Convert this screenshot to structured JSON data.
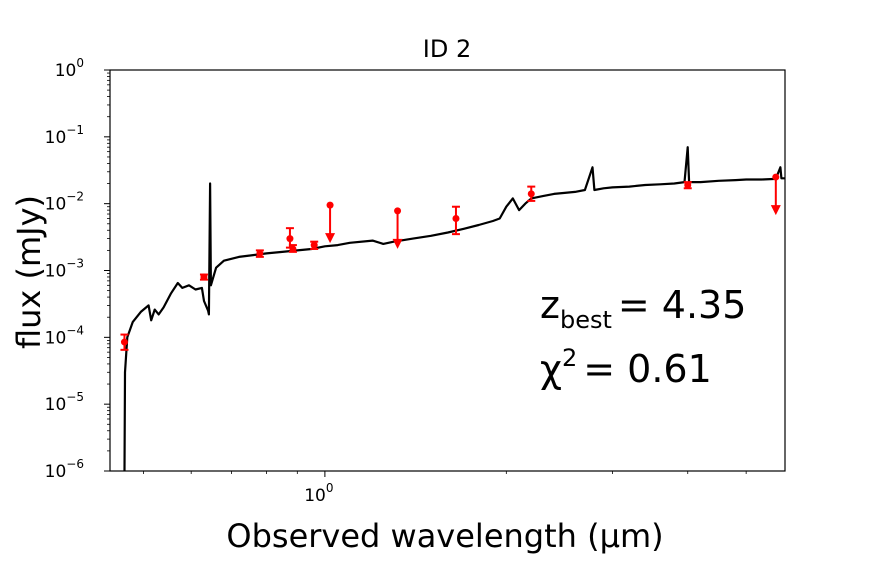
{
  "chart_data": {
    "type": "line",
    "title": "ID 2",
    "xlabel": "Observed wavelength (µm)",
    "ylabel": "flux (mJy)",
    "xscale": "log",
    "yscale": "log",
    "xlim": [
      0.44,
      5.8
    ],
    "ylim": [
      1e-06,
      1
    ],
    "grid": false,
    "x_ticks": [
      {
        "value": 1,
        "base": "10",
        "exp": "0"
      }
    ],
    "y_ticks": [
      {
        "value": 1,
        "base": "10",
        "exp": "0"
      },
      {
        "value": 0.1,
        "base": "10",
        "exp": "−1"
      },
      {
        "value": 0.01,
        "base": "10",
        "exp": "−2"
      },
      {
        "value": 0.001,
        "base": "10",
        "exp": "−3"
      },
      {
        "value": 0.0001,
        "base": "10",
        "exp": "−4"
      },
      {
        "value": 1e-05,
        "base": "10",
        "exp": "−5"
      },
      {
        "value": 1e-06,
        "base": "10",
        "exp": "−6"
      }
    ],
    "annotations": {
      "z_label": "z",
      "z_sub": "best",
      "z_value": "= 4.35",
      "chi_label": "χ",
      "chi_sup": "2",
      "chi_value": "= 0.61"
    },
    "series": [
      {
        "kind": "model_sed",
        "color": "#000000",
        "points": [
          [
            0.465,
            1e-06
          ],
          [
            0.466,
            3e-05
          ],
          [
            0.47,
            0.0001
          ],
          [
            0.48,
            0.00017
          ],
          [
            0.495,
            0.00024
          ],
          [
            0.51,
            0.0003
          ],
          [
            0.515,
            0.00018
          ],
          [
            0.522,
            0.00026
          ],
          [
            0.53,
            0.00022
          ],
          [
            0.54,
            0.00028
          ],
          [
            0.555,
            0.00045
          ],
          [
            0.57,
            0.00065
          ],
          [
            0.58,
            0.00055
          ],
          [
            0.595,
            0.0006
          ],
          [
            0.61,
            0.00052
          ],
          [
            0.625,
            0.00055
          ],
          [
            0.63,
            0.00035
          ],
          [
            0.64,
            0.00025
          ],
          [
            0.642,
            0.00022
          ],
          [
            0.645,
            0.02
          ],
          [
            0.647,
            0.0006
          ],
          [
            0.66,
            0.0011
          ],
          [
            0.68,
            0.0014
          ],
          [
            0.72,
            0.0016
          ],
          [
            0.76,
            0.0017
          ],
          [
            0.8,
            0.0018
          ],
          [
            0.85,
            0.0019
          ],
          [
            0.9,
            0.002
          ],
          [
            0.95,
            0.0021
          ],
          [
            1.0,
            0.0023
          ],
          [
            1.05,
            0.0024
          ],
          [
            1.1,
            0.0026
          ],
          [
            1.2,
            0.0028
          ],
          [
            1.25,
            0.0025
          ],
          [
            1.3,
            0.0027
          ],
          [
            1.4,
            0.003
          ],
          [
            1.5,
            0.0033
          ],
          [
            1.6,
            0.0037
          ],
          [
            1.7,
            0.0042
          ],
          [
            1.8,
            0.0048
          ],
          [
            1.9,
            0.0055
          ],
          [
            1.95,
            0.006
          ],
          [
            2.0,
            0.009
          ],
          [
            2.05,
            0.012
          ],
          [
            2.1,
            0.008
          ],
          [
            2.15,
            0.01
          ],
          [
            2.2,
            0.012
          ],
          [
            2.3,
            0.013
          ],
          [
            2.4,
            0.014
          ],
          [
            2.5,
            0.0145
          ],
          [
            2.6,
            0.015
          ],
          [
            2.7,
            0.016
          ],
          [
            2.78,
            0.035
          ],
          [
            2.8,
            0.016
          ],
          [
            2.9,
            0.017
          ],
          [
            3.0,
            0.0175
          ],
          [
            3.2,
            0.018
          ],
          [
            3.4,
            0.019
          ],
          [
            3.6,
            0.0195
          ],
          [
            3.8,
            0.02
          ],
          [
            3.95,
            0.021
          ],
          [
            4.0,
            0.07
          ],
          [
            4.02,
            0.021
          ],
          [
            4.2,
            0.021
          ],
          [
            4.5,
            0.022
          ],
          [
            4.8,
            0.0225
          ],
          [
            5.0,
            0.023
          ],
          [
            5.3,
            0.023
          ],
          [
            5.6,
            0.0235
          ],
          [
            5.7,
            0.035
          ],
          [
            5.72,
            0.024
          ],
          [
            5.8,
            0.024
          ]
        ]
      },
      {
        "kind": "photometry",
        "color": "#ff0000",
        "points": [
          {
            "x": 0.465,
            "y": 8.5e-05,
            "err_lo": 6.5e-05,
            "err_hi": 0.00011
          },
          {
            "x": 0.63,
            "y": 0.0008,
            "err_lo": 0.00073,
            "err_hi": 0.00087
          },
          {
            "x": 0.78,
            "y": 0.0018,
            "err_lo": 0.0016,
            "err_hi": 0.002
          },
          {
            "x": 0.875,
            "y": 0.003,
            "err_lo": 0.0022,
            "err_hi": 0.0043
          },
          {
            "x": 0.885,
            "y": 0.0021,
            "err_lo": 0.0019,
            "err_hi": 0.0024
          },
          {
            "x": 0.96,
            "y": 0.0024,
            "err_lo": 0.0021,
            "err_hi": 0.0027
          },
          {
            "x": 2.2,
            "y": 0.014,
            "err_lo": 0.011,
            "err_hi": 0.018
          },
          {
            "x": 1.65,
            "y": 0.006,
            "err_lo": 0.0035,
            "err_hi": 0.009
          },
          {
            "x": 4.0,
            "y": 0.019,
            "err_lo": 0.017,
            "err_hi": 0.021
          }
        ],
        "upper_limits": [
          {
            "x": 1.02,
            "y": 0.0095
          },
          {
            "x": 1.32,
            "y": 0.0078
          },
          {
            "x": 5.6,
            "y": 0.025
          }
        ]
      }
    ]
  }
}
